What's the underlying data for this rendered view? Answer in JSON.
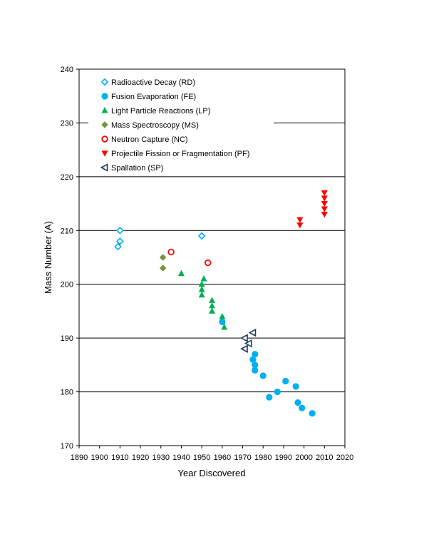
{
  "chart_data": {
    "type": "scatter",
    "title": "",
    "xlabel": "Year Discovered",
    "ylabel": "Mass Number (A)",
    "xlim": [
      1890,
      2020
    ],
    "ylim": [
      170,
      240
    ],
    "x_ticks": [
      1890,
      1900,
      1910,
      1920,
      1930,
      1940,
      1950,
      1960,
      1970,
      1980,
      1990,
      2000,
      2010,
      2020
    ],
    "y_ticks": [
      170,
      180,
      190,
      200,
      210,
      220,
      230,
      240
    ],
    "grid": "horizontal",
    "legend_position": "top-left",
    "series": [
      {
        "name": "Radioactive Decay (RD)",
        "marker": "diamond-open",
        "color": "#00b0f0",
        "points": [
          [
            1910,
            210
          ],
          [
            1910,
            208
          ],
          [
            1909,
            207
          ],
          [
            1950,
            209
          ]
        ]
      },
      {
        "name": "Fusion Evaporation (FE)",
        "marker": "circle-filled",
        "color": "#00b0f0",
        "points": [
          [
            1960,
            193
          ],
          [
            1976,
            187
          ],
          [
            1975,
            186
          ],
          [
            1976,
            185
          ],
          [
            1976,
            184
          ],
          [
            1980,
            183
          ],
          [
            1991,
            182
          ],
          [
            1996,
            181
          ],
          [
            1987,
            180
          ],
          [
            1983,
            179
          ],
          [
            1997,
            178
          ],
          [
            1999,
            177
          ],
          [
            2004,
            176
          ]
        ]
      },
      {
        "name": "Light Particle Reactions (LP)",
        "marker": "triangle-up-filled",
        "color": "#00b050",
        "points": [
          [
            1940,
            202
          ],
          [
            1951,
            201
          ],
          [
            1950,
            200
          ],
          [
            1950,
            199
          ],
          [
            1950,
            198
          ],
          [
            1955,
            197
          ],
          [
            1955,
            196
          ],
          [
            1955,
            195
          ],
          [
            1960,
            194
          ],
          [
            1961,
            192
          ]
        ]
      },
      {
        "name": "Mass Spectroscopy (MS)",
        "marker": "diamond-filled",
        "color": "#77933c",
        "points": [
          [
            1931,
            205
          ],
          [
            1931,
            203
          ]
        ]
      },
      {
        "name": "Neutron Capture (NC)",
        "marker": "circle-open",
        "color": "#ff0000",
        "points": [
          [
            1935,
            206
          ],
          [
            1953,
            204
          ]
        ]
      },
      {
        "name": "Projectile Fission or Fragmentation (PF)",
        "marker": "triangle-down-filled",
        "color": "#ff0000",
        "points": [
          [
            1998,
            212
          ],
          [
            1998,
            211
          ],
          [
            2010,
            217
          ],
          [
            2010,
            216
          ],
          [
            2010,
            215
          ],
          [
            2010,
            214
          ],
          [
            2010,
            213
          ]
        ]
      },
      {
        "name": "Spallation (SP)",
        "marker": "triangle-left-open",
        "color": "#1f3864",
        "points": [
          [
            1975,
            191
          ],
          [
            1971,
            190
          ],
          [
            1973,
            189
          ],
          [
            1971,
            188
          ]
        ]
      }
    ]
  }
}
